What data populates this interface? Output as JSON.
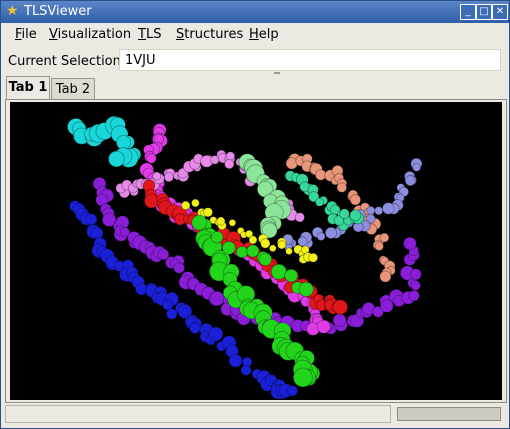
{
  "window": {
    "title": "TLSViewer"
  },
  "menu": {
    "items": [
      {
        "label": "File",
        "accel": "F",
        "rest": "ile"
      },
      {
        "label": "Visualization",
        "accel": "V",
        "rest": "isualization"
      },
      {
        "label": "TLS",
        "accel": "T",
        "rest": "LS"
      },
      {
        "label": "Structures",
        "accel": "S",
        "rest": "tructures"
      },
      {
        "label": "Help",
        "accel": "H",
        "rest": "elp"
      }
    ]
  },
  "selection": {
    "label": "Current Selection:",
    "value": "1VJU"
  },
  "tabs": [
    {
      "label": "Tab 1"
    },
    {
      "label": "Tab 2"
    }
  ],
  "viewer": {
    "description": "3D protein chain view",
    "chains": [
      {
        "name": "cyan",
        "color": "#19d6d8"
      },
      {
        "name": "magenta",
        "color": "#e03be6"
      },
      {
        "name": "green",
        "color": "#22d41c"
      },
      {
        "name": "blue",
        "color": "#1a20d8"
      },
      {
        "name": "purple",
        "color": "#8a1ed8"
      },
      {
        "name": "red",
        "color": "#e0161a"
      },
      {
        "name": "yellow",
        "color": "#f2f21a"
      },
      {
        "name": "pink",
        "color": "#e58ae8"
      },
      {
        "name": "lightgreen",
        "color": "#8ce69a"
      },
      {
        "name": "salmon",
        "color": "#e8957a"
      },
      {
        "name": "lavender",
        "color": "#8c8ee0"
      },
      {
        "name": "teal",
        "color": "#36d89a"
      }
    ]
  }
}
